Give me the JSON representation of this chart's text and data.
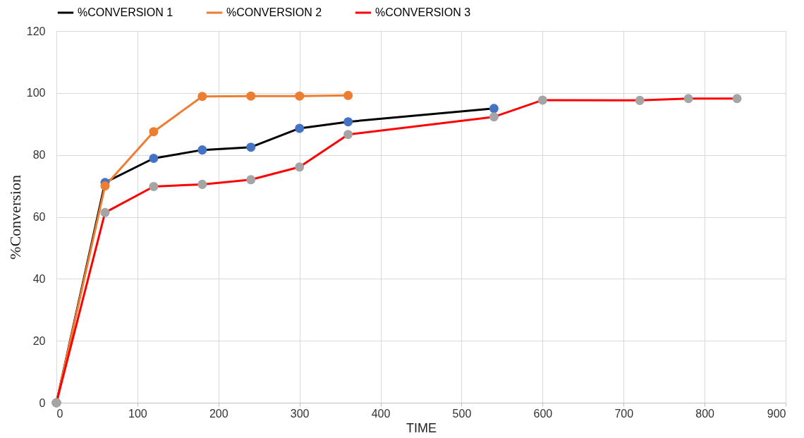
{
  "chart_data": {
    "type": "line",
    "xlabel": "TIME",
    "ylabel": "%Conversion",
    "xlim": [
      0,
      900
    ],
    "xticks": [
      0,
      100,
      200,
      300,
      400,
      500,
      600,
      700,
      800,
      900
    ],
    "ylim": [
      0,
      120
    ],
    "yticks": [
      0,
      20,
      40,
      60,
      80,
      100,
      120
    ],
    "grid": true,
    "legend": "top",
    "marker": "circle",
    "line_style": "solid",
    "series": [
      {
        "name": "%CONVERSION 1",
        "color": "#000000",
        "x": [
          0,
          60,
          120,
          180,
          240,
          300,
          360,
          540
        ],
        "values": [
          0,
          71.1,
          78.9,
          81.6,
          82.5,
          88.6,
          90.7,
          95
        ],
        "colors": [
          "#4472c4",
          "#4472c4",
          "#4472c4",
          "#4472c4",
          "#4472c4",
          "#4472c4",
          "#4472c4",
          "#4472c4"
        ]
      },
      {
        "name": "%CONVERSION 2",
        "color": "#ed7d31",
        "x": [
          0,
          60,
          120,
          180,
          240,
          300,
          360
        ],
        "values": [
          0,
          70,
          87.5,
          98.9,
          99,
          99,
          99.2
        ],
        "colors": [
          "#ed7d31",
          "#ed7d31",
          "#ed7d31",
          "#ed7d31",
          "#ed7d31",
          "#ed7d31",
          "#ed7d31"
        ]
      },
      {
        "name": "%CONVERSION 3",
        "color": "#ff0000",
        "x": [
          0,
          60,
          120,
          180,
          240,
          300,
          360,
          540,
          600,
          720,
          780,
          840
        ],
        "values": [
          0,
          61.4,
          69.8,
          70.5,
          72,
          76.1,
          86.6,
          92.3,
          97.7,
          97.6,
          98.2,
          98.2
        ],
        "colors": [
          "#a5a5a5",
          "#a5a5a5",
          "#a5a5a5",
          "#a5a5a5",
          "#a5a5a5",
          "#a5a5a5",
          "#a5a5a5",
          "#a5a5a5",
          "#a5a5a5",
          "#a5a5a5",
          "#a5a5a5",
          "#a5a5a5"
        ]
      }
    ]
  }
}
